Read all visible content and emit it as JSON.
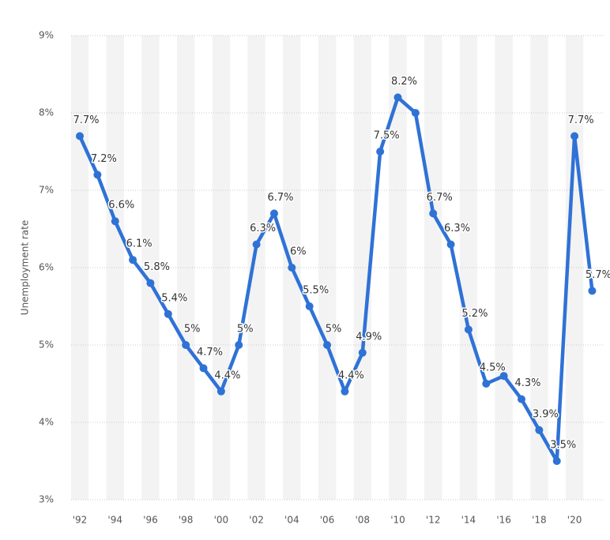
{
  "chart_data": {
    "type": "line",
    "y_label": "Unemployment rate",
    "categories": [
      "'92",
      null,
      "'94",
      null,
      "'96",
      null,
      "'98",
      null,
      "'00",
      null,
      "'02",
      null,
      "'04",
      null,
      "'06",
      null,
      "'08",
      null,
      "'10",
      null,
      "'12",
      null,
      "'14",
      null,
      "'16",
      null,
      "'18",
      null,
      "'20",
      null
    ],
    "series": [
      {
        "color": "#2f72d6",
        "values": [
          7.7,
          7.2,
          6.6,
          6.1,
          5.8,
          5.4,
          5,
          4.7,
          4.4,
          5,
          6.3,
          6.7,
          6,
          5.5,
          5,
          4.4,
          4.9,
          7.5,
          8.2,
          8.0,
          6.7,
          6.3,
          5.2,
          4.5,
          4.6,
          4.3,
          3.9,
          3.5,
          7.7,
          5.7
        ],
        "value_labels": [
          "7.7%",
          "7.2%",
          "6.6%",
          "6.1%",
          "5.8%",
          "5.4%",
          "5%",
          "4.7%",
          "4.4%",
          "5%",
          "6.3%",
          "6.7%",
          "6%",
          "5.5%",
          "5%",
          "4.4%",
          "4.9%",
          "7.5%",
          "8.2%",
          null,
          "6.7%",
          "6.3%",
          "5.2%",
          "4.5%",
          null,
          "4.3%",
          "3.9%",
          "3.5%",
          "7.7%",
          "5.7%"
        ]
      }
    ],
    "ylim": [
      3,
      9
    ],
    "yticks": [
      {
        "value": 3,
        "label": "3%"
      },
      {
        "value": 4,
        "label": "4%"
      },
      {
        "value": 5,
        "label": "5%"
      },
      {
        "value": 6,
        "label": "6%"
      },
      {
        "value": 7,
        "label": "7%"
      },
      {
        "value": 8,
        "label": "8%"
      },
      {
        "value": 9,
        "label": "9%"
      }
    ],
    "grid": true
  }
}
